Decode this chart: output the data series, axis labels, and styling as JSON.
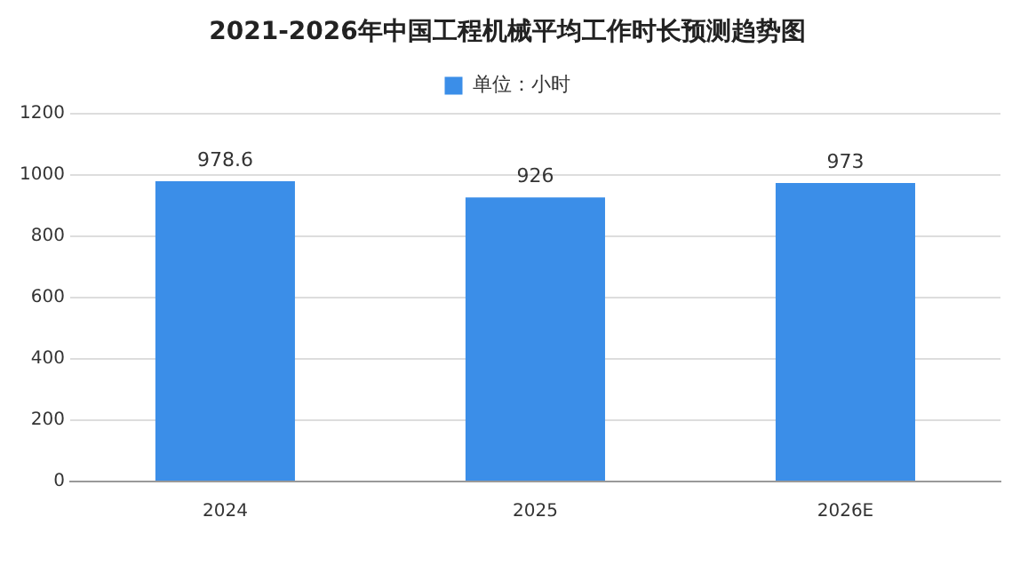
{
  "chart_data": {
    "type": "bar",
    "title": "2021-2026年中国工程机械平均工作时长预测趋势图",
    "categories": [
      "2024",
      "2025",
      "2026E"
    ],
    "series": [
      {
        "name": "单位：小时",
        "color": "#3b8ee8",
        "values": [
          978.6,
          926,
          973
        ]
      }
    ],
    "ylim": [
      0,
      1200
    ],
    "yticks": [
      0,
      200,
      400,
      600,
      800,
      1000,
      1200
    ],
    "grid": "y",
    "legend": "top",
    "data_labels": true
  }
}
